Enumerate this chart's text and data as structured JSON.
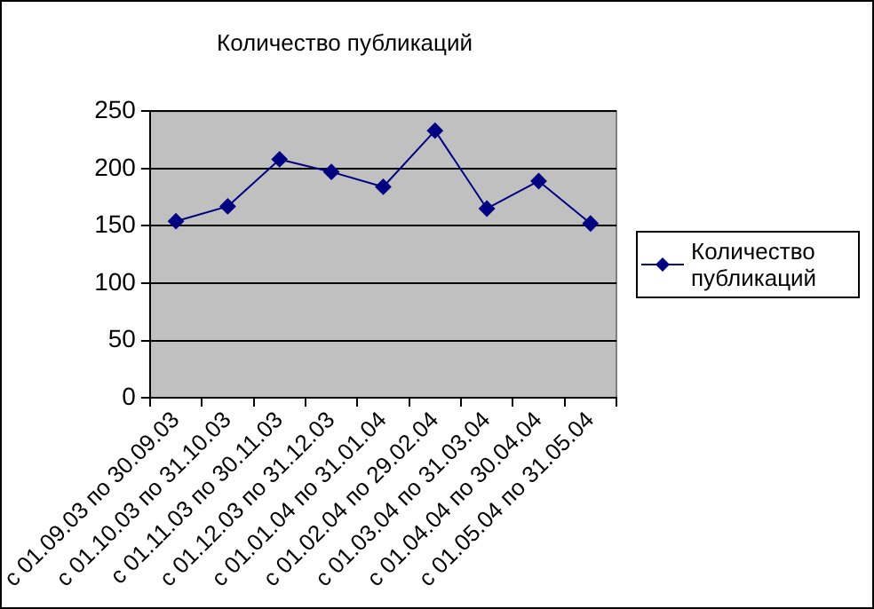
{
  "chart_data": {
    "type": "line",
    "title": "Количество публикаций",
    "categories": [
      "с 01.09.03 по 30.09.03",
      "с 01.10.03 по 31.10.03",
      "с 01.11.03 по 30.11.03",
      "с 01.12.03 по 31.12.03",
      "с 01.01.04 по 31.01.04",
      "с 01.02.04 по 29.02.04",
      "с 01.03.04 по 31.03.04",
      "с 01.04.04 по 30.04.04",
      "с 01.05.04 по 31.05.04"
    ],
    "series": [
      {
        "name": "Количество публикаций",
        "color": "#000080",
        "values": [
          154,
          167,
          208,
          197,
          184,
          233,
          165,
          189,
          152
        ]
      }
    ],
    "ylim": [
      0,
      250
    ],
    "yticks": [
      0,
      50,
      100,
      150,
      200,
      250
    ],
    "grid": "y",
    "legend": "right",
    "marker": "diamond",
    "line_style": "solid"
  }
}
